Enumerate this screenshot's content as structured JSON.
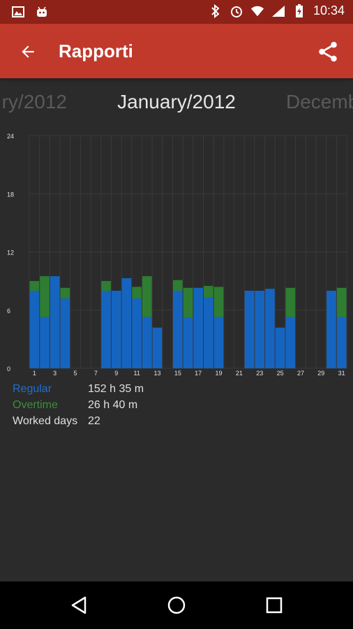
{
  "status": {
    "time": "10:34"
  },
  "appbar": {
    "title": "Rapporti"
  },
  "months": {
    "prev": "ry/2012",
    "current": "January/2012",
    "next": "Decemb"
  },
  "summary": {
    "regular_label": "Regular",
    "regular_value": "152 h 35 m",
    "overtime_label": "Overtime",
    "overtime_value": "26 h 40 m",
    "worked_label": "Worked days",
    "worked_value": "22"
  },
  "colors": {
    "regular": "#1565c0",
    "overtime": "#2e7d32",
    "appbar": "#c0392b",
    "statusbar": "#8e2218"
  },
  "chart_data": {
    "type": "bar",
    "stacked": true,
    "x": [
      1,
      2,
      3,
      4,
      5,
      6,
      7,
      8,
      9,
      10,
      11,
      12,
      13,
      14,
      15,
      16,
      17,
      18,
      19,
      20,
      21,
      22,
      23,
      24,
      25,
      26,
      27,
      28,
      29,
      30,
      31
    ],
    "x_tick_labels": [
      "1",
      "3",
      "5",
      "7",
      "9",
      "11",
      "13",
      "15",
      "17",
      "19",
      "21",
      "23",
      "25",
      "27",
      "29",
      "31"
    ],
    "y_tick_labels": [
      "0",
      "6",
      "12",
      "18",
      "24"
    ],
    "ylim": [
      0,
      24
    ],
    "grid": true,
    "series": [
      {
        "name": "Regular",
        "values": [
          8,
          5.3,
          9.5,
          7.2,
          0,
          0,
          0,
          8,
          8,
          9.3,
          7.2,
          5.3,
          4.2,
          0,
          8,
          5.2,
          8.3,
          7.3,
          5.3,
          0,
          0,
          8,
          8,
          8.2,
          4.2,
          5.3,
          0,
          0,
          0,
          8,
          5.3
        ]
      },
      {
        "name": "Overtime",
        "values": [
          1,
          4.2,
          0,
          1.1,
          0,
          0,
          0,
          1,
          0,
          0,
          1.2,
          4.2,
          0,
          0,
          1.1,
          3.1,
          0,
          1.2,
          3.1,
          0,
          0,
          0,
          0,
          0,
          0,
          3,
          0,
          0,
          0,
          0,
          3
        ]
      }
    ]
  }
}
